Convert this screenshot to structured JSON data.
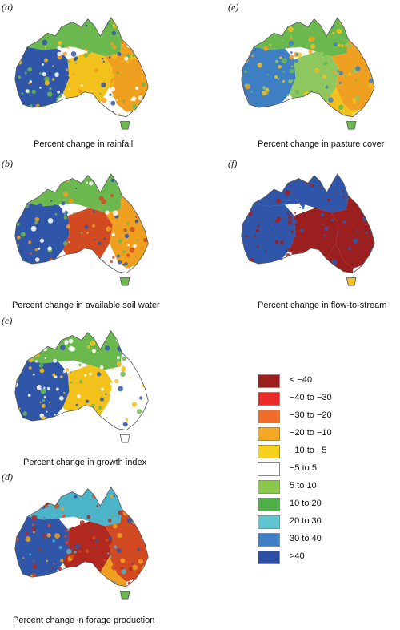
{
  "panels": [
    {
      "letter": "(a)",
      "caption": "Percent change in rainfall",
      "colors": {
        "west": "#2f56a8",
        "north": "#6ab84e",
        "central": "#f2c11b",
        "east": "#f0a020",
        "south": "#ffffff",
        "tas": "#6ab84e"
      }
    },
    {
      "letter": "(b)",
      "caption": "Percent change in available soil water",
      "colors": {
        "west": "#2f56a8",
        "north": "#6ab84e",
        "central": "#d24a22",
        "east": "#f0a020",
        "south": "#ffffff",
        "tas": "#6ab84e"
      }
    },
    {
      "letter": "(c)",
      "caption": "Percent change in growth index",
      "colors": {
        "west": "#2f56a8",
        "north": "#6ab84e",
        "central": "#f2c11b",
        "east": "#ffffff",
        "south": "#ffffff",
        "tas": "#ffffff"
      }
    },
    {
      "letter": "(d)",
      "caption": "Percent change in forage production",
      "colors": {
        "west": "#2f56a8",
        "north": "#4bb4c8",
        "central": "#b0281e",
        "east": "#d24a22",
        "south": "#f0a020",
        "tas": "#6ab84e"
      }
    },
    {
      "letter": "(e)",
      "caption": "Percent change in pasture cover",
      "colors": {
        "west": "#3e7fc4",
        "north": "#6ab84e",
        "central": "#8fc75f",
        "east": "#f0a020",
        "south": "#f2c11b",
        "tas": "#6ab84e"
      }
    },
    {
      "letter": "(f)",
      "caption": "Percent change in flow-to-stream",
      "colors": {
        "west": "#2f56a8",
        "north": "#2f56a8",
        "central": "#9c1f1f",
        "east": "#9c1f1f",
        "south": "#9c1f1f",
        "tas": "#f2c11b"
      }
    }
  ],
  "legend": [
    {
      "label": "< −40",
      "color": "#9c1f1f"
    },
    {
      "label": "−40 to −30",
      "color": "#ec2a2a"
    },
    {
      "label": "−30 to −20",
      "color": "#f36d2a"
    },
    {
      "label": "−20 to −10",
      "color": "#f5a623"
    },
    {
      "label": "−10 to −5",
      "color": "#f6d21c"
    },
    {
      "label": "−5 to 5",
      "color": "#ffffff"
    },
    {
      "label": "5 to 10",
      "color": "#8bc74a"
    },
    {
      "label": "10 to 20",
      "color": "#4caf48"
    },
    {
      "label": "20 to 30",
      "color": "#5fc6cf"
    },
    {
      "label": "30 to 40",
      "color": "#3f7fc4"
    },
    {
      "label": ">40",
      "color": "#2d4fa6"
    }
  ]
}
